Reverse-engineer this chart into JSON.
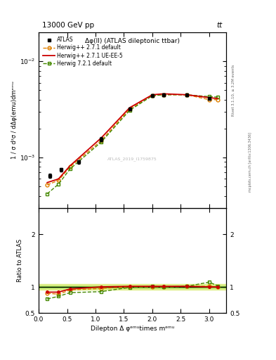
{
  "title_top": "13000 GeV pp",
  "title_top_right": "tt",
  "plot_title": "Δφ(ll) (ATLAS dileptonic ttbar)",
  "ylabel_main": "1 / σ d²σ / dΔφ(emu)dmᵉᵐᵘ",
  "ylabel_ratio": "Ratio to ATLAS",
  "xlabel": "Dilepton Δ φᵉᵐᵘtimes mᵉᵐᵘ",
  "right_label_top": "Rivet 3.1.10, ≥ 3.2M events",
  "right_label_bottom": "mcplots.cern.ch [arXiv:1306.3436]",
  "watermark": "ATLAS_2019_I1759875",
  "atlas_x": [
    0.2,
    0.4,
    0.7,
    1.1,
    1.6,
    2.0,
    2.2,
    2.6,
    3.0
  ],
  "atlas_y": [
    0.00065,
    0.00075,
    0.0009,
    0.00155,
    0.0032,
    0.0044,
    0.0045,
    0.00445,
    0.0041
  ],
  "atlas_yerr": [
    3e-05,
    3e-05,
    4e-05,
    7e-05,
    0.00012,
    0.00015,
    0.00015,
    0.00015,
    0.00014
  ],
  "herwig271_default_x": [
    0.15,
    0.35,
    0.55,
    1.1,
    1.6,
    2.0,
    2.2,
    2.6,
    3.0,
    3.15
  ],
  "herwig271_default_y": [
    0.00052,
    0.00058,
    0.0008,
    0.0015,
    0.0032,
    0.0044,
    0.0045,
    0.0045,
    0.004,
    0.004
  ],
  "herwig271_uee5_x": [
    0.15,
    0.35,
    0.55,
    1.1,
    1.6,
    2.0,
    2.2,
    2.6,
    3.0,
    3.15
  ],
  "herwig271_uee5_y": [
    0.00055,
    0.0006,
    0.00082,
    0.0016,
    0.0033,
    0.0045,
    0.0046,
    0.0045,
    0.0042,
    0.0041
  ],
  "herwig721_default_x": [
    0.15,
    0.35,
    0.55,
    1.1,
    1.6,
    2.0,
    2.2,
    2.6,
    3.0,
    3.15
  ],
  "herwig721_default_y": [
    0.00042,
    0.00053,
    0.00076,
    0.00145,
    0.0031,
    0.0044,
    0.0045,
    0.0045,
    0.0043,
    0.00425
  ],
  "ratio_x": [
    0.15,
    0.35,
    0.55,
    1.1,
    1.6,
    2.0,
    2.2,
    2.6,
    3.0,
    3.15
  ],
  "ratio_herwig271_default": [
    0.88,
    0.86,
    0.94,
    0.97,
    1.0,
    1.0,
    1.0,
    1.01,
    1.01,
    1.0
  ],
  "ratio_herwig271_uee5": [
    0.9,
    0.9,
    0.96,
    1.0,
    1.01,
    1.01,
    1.01,
    1.01,
    1.0,
    1.0
  ],
  "ratio_herwig721_default": [
    0.77,
    0.82,
    0.89,
    0.91,
    0.99,
    1.01,
    1.0,
    1.01,
    1.09,
    1.02
  ],
  "atlas_band_inner": 0.02,
  "atlas_band_outer": 0.06,
  "color_orange": "#e08000",
  "color_red": "#cc0000",
  "color_green": "#448800",
  "color_black": "#000000",
  "color_band_inner": "#88cc44",
  "color_band_outer": "#ddee88",
  "ylim_main": [
    0.0003,
    0.02
  ],
  "xlim": [
    0.0,
    3.3
  ]
}
